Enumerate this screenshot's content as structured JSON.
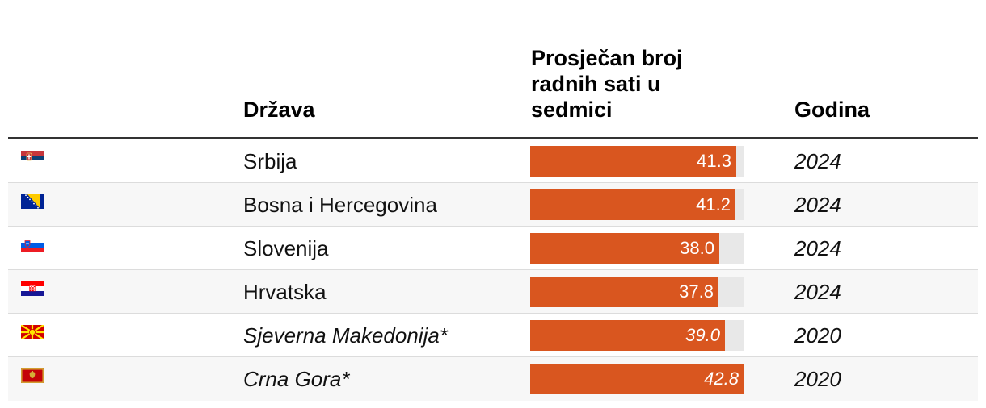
{
  "table": {
    "headers": {
      "country": "Država",
      "hours": "Prosječan broj radnih sati u sedmici",
      "year": "Godina"
    }
  },
  "chart_data": {
    "type": "bar",
    "orientation": "horizontal",
    "categories": [
      "Srbija",
      "Bosna i Hercegovina",
      "Slovenija",
      "Hrvatska",
      "Sjeverna Makedonija*",
      "Crna Gora*"
    ],
    "values": [
      41.3,
      41.2,
      38.0,
      37.8,
      39.0,
      42.8
    ],
    "value_labels": [
      "41.3",
      "41.2",
      "38.0",
      "37.8",
      "39.0",
      "42.8"
    ],
    "years": [
      "2024",
      "2024",
      "2024",
      "2024",
      "2020",
      "2020"
    ],
    "italic": [
      false,
      false,
      false,
      false,
      true,
      true
    ],
    "flags": [
      "serbia-flag-icon",
      "bosnia-flag-icon",
      "slovenia-flag-icon",
      "croatia-flag-icon",
      "north-macedonia-flag-icon",
      "montenegro-flag-icon"
    ],
    "xlim": [
      0,
      42.8
    ],
    "bar_color": "#d9561f",
    "track_color": "#e8e8e8"
  }
}
